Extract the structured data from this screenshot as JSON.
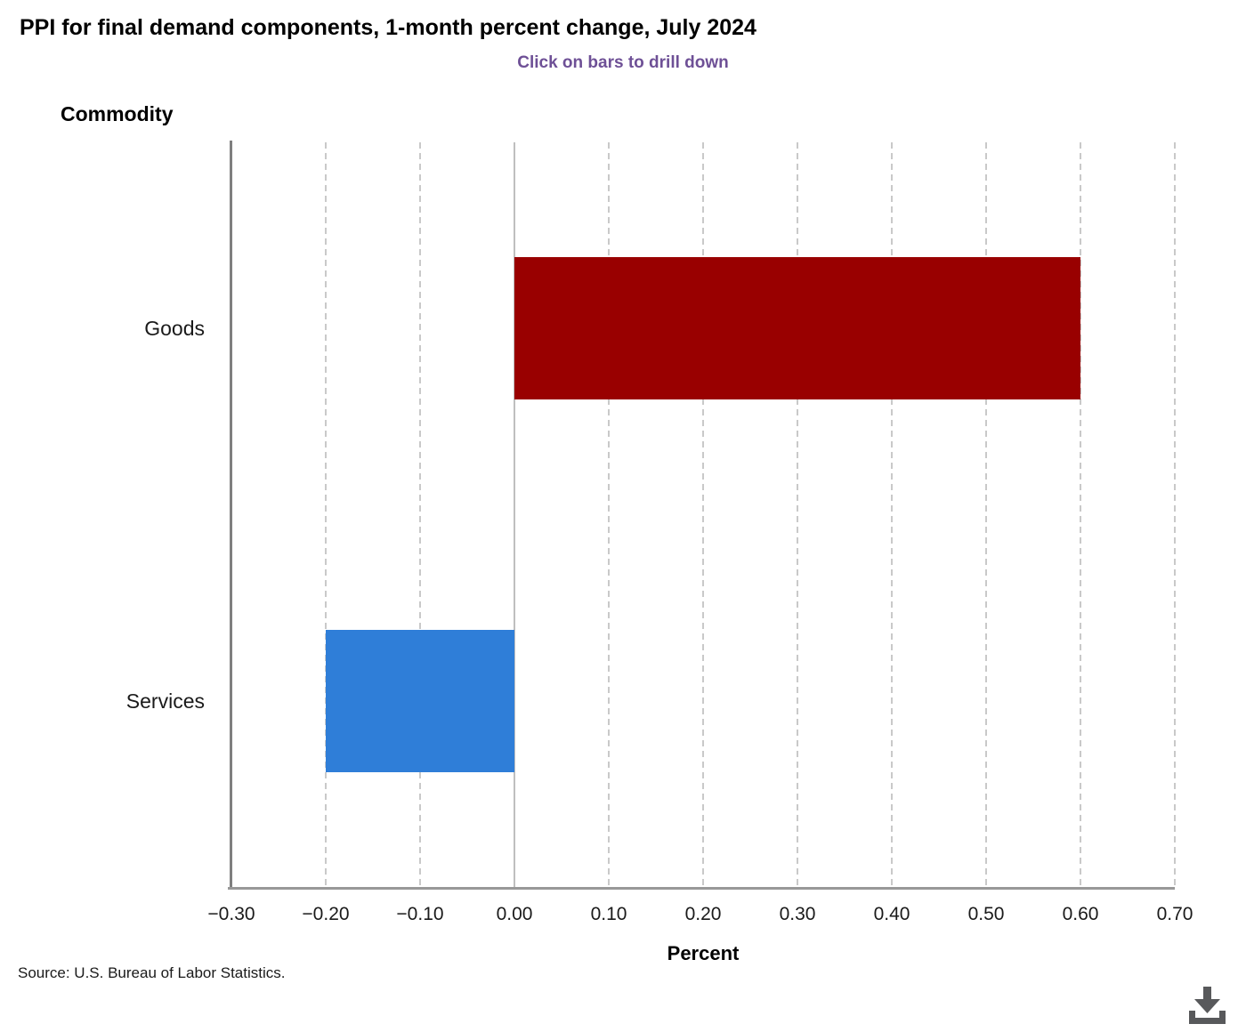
{
  "header": {
    "title": "PPI for final demand components, 1-month percent change, July 2024",
    "subtitle": "Click on bars to drill down"
  },
  "axes": {
    "y_label": "Commodity",
    "x_label": "Percent"
  },
  "chart_data": {
    "type": "bar",
    "orientation": "horizontal",
    "title": "PPI for final demand components, 1-month percent change, July 2024",
    "subtitle": "Click on bars to drill down",
    "categories": [
      "Goods",
      "Services"
    ],
    "values": [
      0.6,
      -0.2
    ],
    "bar_colors": [
      "#990000",
      "#2f7ed8"
    ],
    "xlabel": "Percent",
    "ylabel": "Commodity",
    "xlim": [
      -0.3,
      0.7
    ],
    "x_ticks": [
      -0.3,
      -0.2,
      -0.1,
      0,
      0.1,
      0.2,
      0.3,
      0.4,
      0.5,
      0.6,
      0.7
    ],
    "x_tick_labels": [
      "−0.30",
      "−0.20",
      "−0.10",
      "0.00",
      "0.10",
      "0.20",
      "0.30",
      "0.40",
      "0.50",
      "0.60",
      "0.70"
    ],
    "grid": "vertical-dashed",
    "legend": "none",
    "drilldown": true
  },
  "footer": {
    "source": "Source: U.S. Bureau of Labor Statistics."
  },
  "toolbar": {
    "download_label": "download chart"
  },
  "colors": {
    "goods_bar": "#990000",
    "services_bar": "#2f7ed8",
    "subtitle_text": "#6e5096",
    "axis_line": "#7f7f7f",
    "gridline": "#c9c9c9",
    "download_icon": "#58595b"
  }
}
